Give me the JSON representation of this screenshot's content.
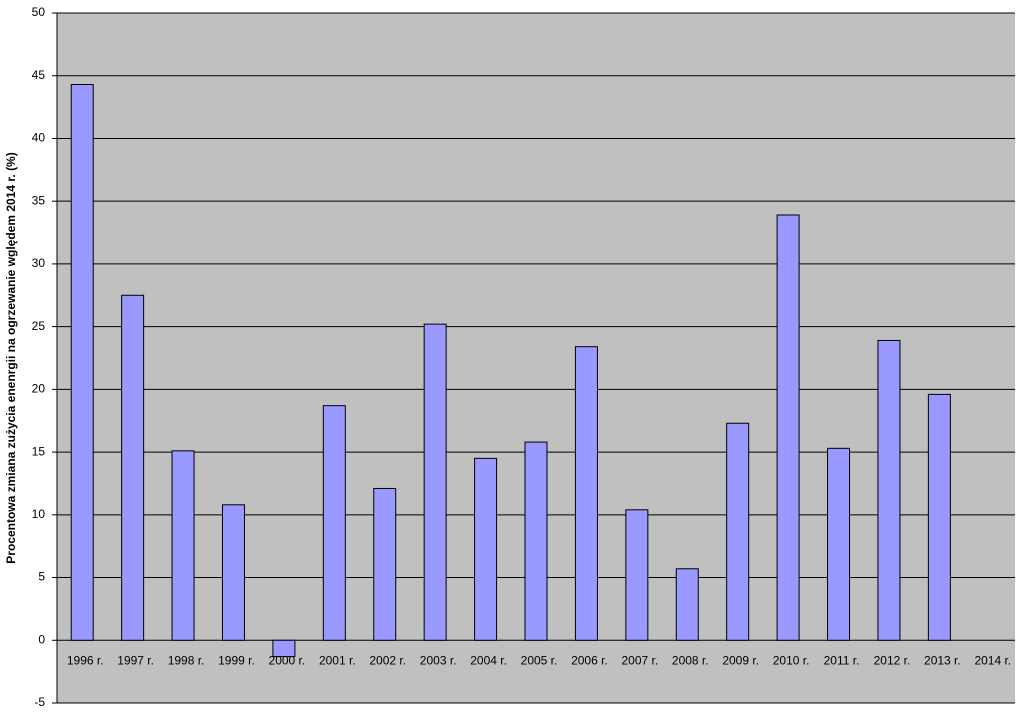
{
  "chart_data": {
    "type": "bar",
    "y_label": "Procentowa zmiana zużycia enenrgii na ogrzewanie wględem 2014 r. (%)",
    "categories": [
      "1996 r.",
      "1997 r.",
      "1998 r.",
      "1999 r.",
      "2000 r.",
      "2001 r.",
      "2002 r.",
      "2003 r.",
      "2004 r.",
      "2005 r.",
      "2006 r.",
      "2007 r.",
      "2008 r.",
      "2009 r.",
      "2010 r.",
      "2011 r.",
      "2012 r.",
      "2013 r.",
      "2014 r."
    ],
    "values": [
      44.3,
      27.5,
      15.1,
      10.8,
      -1.3,
      18.7,
      12.1,
      25.2,
      14.5,
      15.8,
      23.4,
      10.4,
      5.7,
      17.3,
      33.9,
      15.3,
      23.9,
      19.6,
      0
    ],
    "color": "#9999ff",
    "ylim": [
      -5,
      50
    ],
    "yticks": [
      -5,
      0,
      5,
      10,
      15,
      20,
      25,
      30,
      35,
      40,
      45,
      50
    ],
    "grid": true
  }
}
